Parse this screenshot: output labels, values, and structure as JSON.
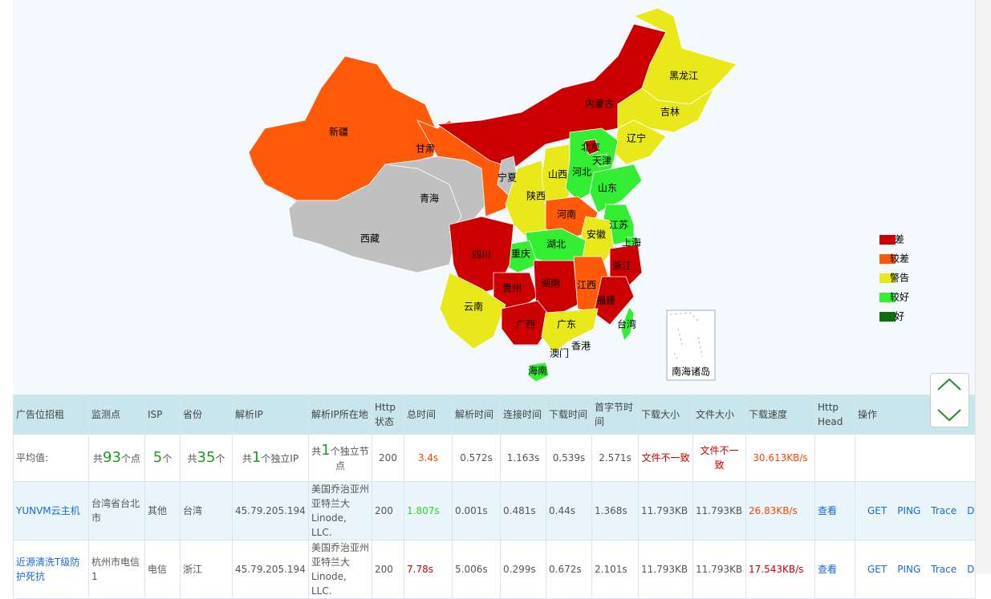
{
  "map": {
    "provinces": [
      {
        "name": "新疆",
        "color": "#ff5a0a"
      },
      {
        "name": "西藏",
        "color": "#c0c0c0"
      },
      {
        "name": "青海",
        "color": "#c0c0c0"
      },
      {
        "name": "甘肃",
        "color": "#ff5a0a"
      },
      {
        "name": "内蒙古",
        "color": "#cc0000"
      },
      {
        "name": "黑龙江",
        "color": "#e8e81a"
      },
      {
        "name": "吉林",
        "color": "#e8e81a"
      },
      {
        "name": "辽宁",
        "color": "#e8e81a"
      },
      {
        "name": "宁夏",
        "color": "#c0c0c0"
      },
      {
        "name": "陕西",
        "color": "#e8e81a"
      },
      {
        "name": "山西",
        "color": "#e8e81a"
      },
      {
        "name": "河北",
        "color": "#33ee33"
      },
      {
        "name": "北京",
        "color": "#cc0000"
      },
      {
        "name": "天津",
        "color": "#33ee33"
      },
      {
        "name": "山东",
        "color": "#33ee33"
      },
      {
        "name": "河南",
        "color": "#ff5a0a"
      },
      {
        "name": "江苏",
        "color": "#33ee33"
      },
      {
        "name": "安徽",
        "color": "#e8e81a"
      },
      {
        "name": "上海",
        "color": "#33ee33"
      },
      {
        "name": "浙江",
        "color": "#cc0000"
      },
      {
        "name": "湖北",
        "color": "#33ee33"
      },
      {
        "name": "重庆",
        "color": "#33ee33"
      },
      {
        "name": "四川",
        "color": "#cc0000"
      },
      {
        "name": "贵州",
        "color": "#cc0000"
      },
      {
        "name": "湖南",
        "color": "#cc0000"
      },
      {
        "name": "江西",
        "color": "#ff5a0a"
      },
      {
        "name": "福建",
        "color": "#cc0000"
      },
      {
        "name": "云南",
        "color": "#e8e81a"
      },
      {
        "name": "广西",
        "color": "#cc0000"
      },
      {
        "name": "广东",
        "color": "#e8e81a"
      },
      {
        "name": "香港"
      },
      {
        "name": "澳门"
      },
      {
        "name": "海南",
        "color": "#33ee33"
      },
      {
        "name": "台湾",
        "color": "#33ee33"
      }
    ],
    "inset_label": "南海诸岛",
    "legend": [
      {
        "label": "差",
        "color": "#cc0000"
      },
      {
        "label": "较差",
        "color": "#ff5a0a"
      },
      {
        "label": "警告",
        "color": "#e8e81a"
      },
      {
        "label": "较好",
        "color": "#33ee33"
      },
      {
        "label": "好",
        "color": "#0a6e0a"
      }
    ]
  },
  "table": {
    "headers": [
      "广告位招租",
      "监测点",
      "ISP",
      "省份",
      "解析IP",
      "解析IP所在地",
      "Http状态",
      "总时间",
      "解析时间",
      "连接时间",
      "下载时间",
      "首字节时间",
      "下载大小",
      "文件大小",
      "下载速度",
      "Http Head",
      "操作"
    ],
    "average": [
      "平均值:",
      {
        "prefix": "共",
        "count": 93,
        "suffix": "个点"
      },
      {
        "count": 5,
        "suffix": "个"
      },
      {
        "prefix": "共",
        "count": 35,
        "suffix": "个"
      },
      {
        "prefix": "共",
        "count": 1,
        "suffix": "个独立IP"
      },
      {
        "prefix": "共",
        "count": 1,
        "suffix": "个独立节点"
      },
      "200",
      {
        "text": "3.4s",
        "color": "#ff4400"
      },
      "0.572s",
      "1.163s",
      "0.539s",
      "2.571s",
      {
        "text": "文件不一致",
        "color": "#cc0000"
      },
      {
        "text": "文件不一致",
        "color": "#cc0000"
      },
      {
        "text": "30.613KB/s",
        "color": "#ff4400"
      }
    ],
    "rows": [
      [
        "YUNVM云主机",
        "台湾省台北市",
        "其他",
        "台湾",
        "45.79.205.194",
        "美国乔治亚州亚特兰大 Linode, LLC.",
        "200",
        {
          "text": "1.807s",
          "color": "#22dd22"
        },
        "0.001s",
        "0.481s",
        "0.44s",
        "1.368s",
        "11.793KB",
        "11.793KB",
        {
          "text": "26.83KB/s",
          "color": "#ff4400"
        },
        "查看",
        [
          "GET",
          "PING",
          "Trace",
          "Dig"
        ]
      ],
      [
        "近源清洗T级防护死抗",
        "杭州市电信1",
        "电信",
        "浙江",
        "45.79.205.194",
        "美国乔治亚州亚特兰大 Linode, LLC.",
        "200",
        {
          "text": "7.78s",
          "color": "#cc0000"
        },
        "5.006s",
        "0.299s",
        "0.672s",
        "2.101s",
        "11.793KB",
        "11.793KB",
        {
          "text": "17.543KB/s",
          "color": "#cc0000"
        },
        "查看",
        [
          "GET",
          "PING",
          "Trace",
          "Dig"
        ]
      ]
    ]
  }
}
